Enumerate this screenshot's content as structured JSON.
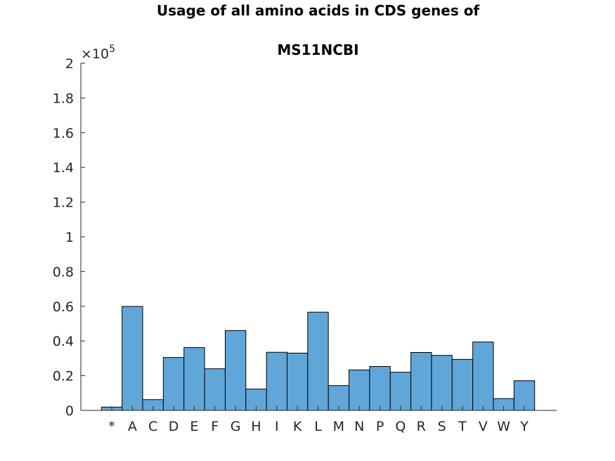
{
  "chart_data": {
    "type": "bar",
    "title_lines": [
      "Usage of all amino acids in CDS genes of",
      "MS11NCBI"
    ],
    "categories": [
      "*",
      "A",
      "C",
      "D",
      "E",
      "F",
      "G",
      "H",
      "I",
      "K",
      "L",
      "M",
      "N",
      "P",
      "Q",
      "R",
      "S",
      "T",
      "V",
      "W",
      "Y"
    ],
    "values": [
      1900,
      59900,
      6200,
      30500,
      36200,
      24000,
      46000,
      12300,
      33500,
      33000,
      56600,
      14300,
      23300,
      25300,
      22000,
      33400,
      31700,
      29400,
      39400,
      6800,
      17100
    ],
    "ylim": [
      0,
      200000
    ],
    "yticks": [
      0,
      20000,
      40000,
      60000,
      80000,
      100000,
      120000,
      140000,
      160000,
      180000,
      200000
    ],
    "ytick_labels": [
      "0",
      "0.2",
      "0.4",
      "0.6",
      "0.8",
      "1",
      "1.2",
      "1.4",
      "1.6",
      "1.8",
      "2"
    ],
    "y_multiplier": "×10",
    "y_multiplier_exponent": "5",
    "bar_color": "#61a6d9",
    "edge_color": "#000000",
    "grid": false
  }
}
